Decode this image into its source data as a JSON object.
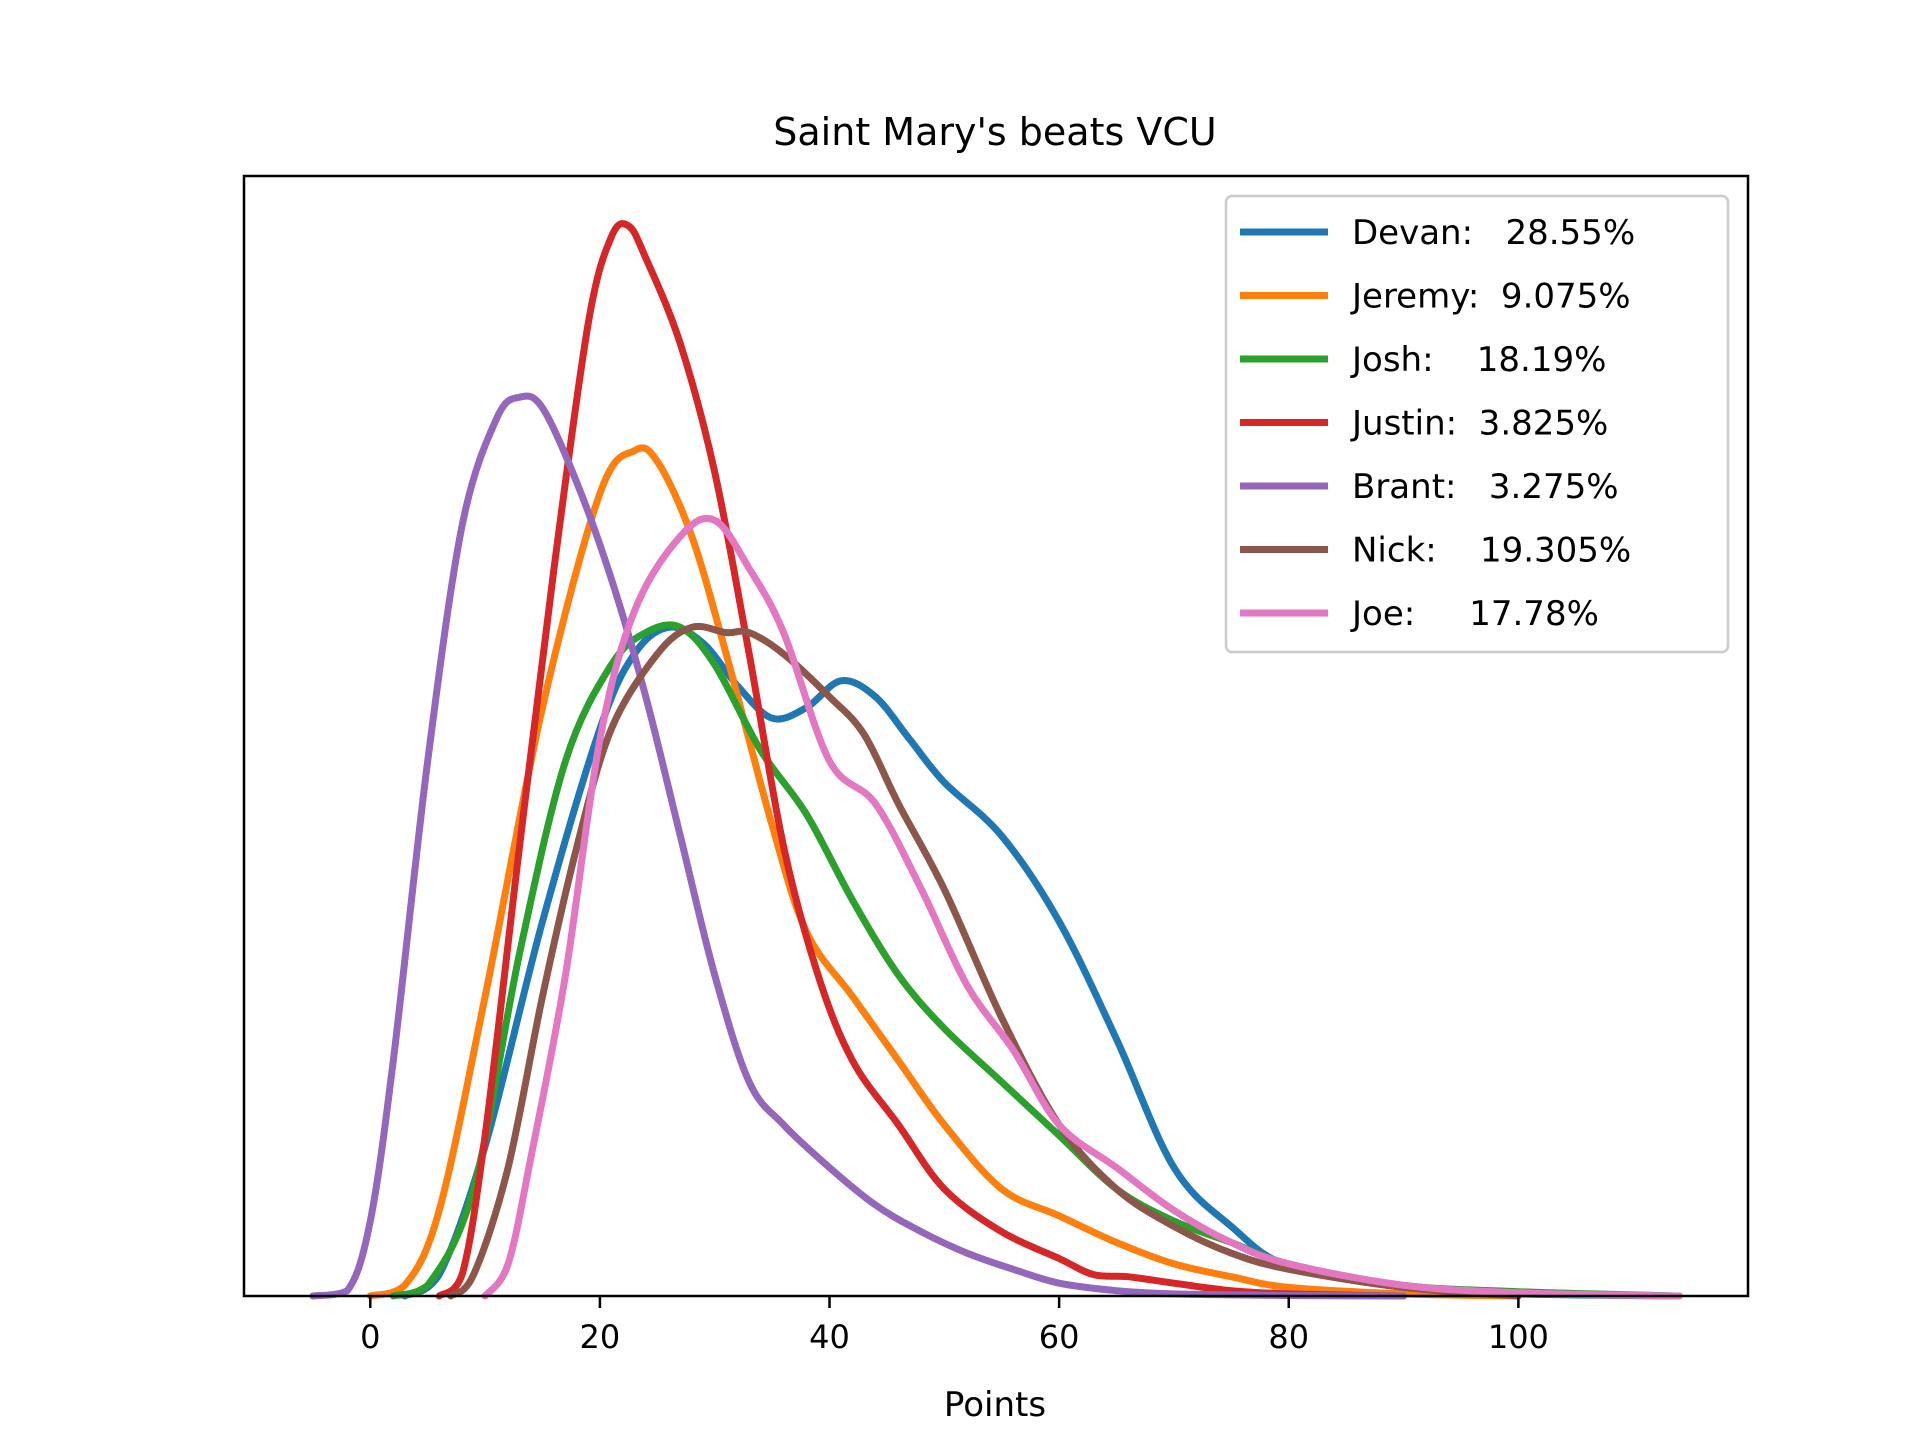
{
  "chart_data": {
    "type": "line",
    "title": "Saint Mary's beats VCU",
    "xlabel": "Points",
    "ylabel": "",
    "xlim": [
      -11,
      120
    ],
    "ylim": [
      0,
      1
    ],
    "xticks": [
      0,
      20,
      40,
      60,
      80,
      100
    ],
    "xtick_labels": [
      "0",
      "20",
      "40",
      "60",
      "80",
      "100"
    ],
    "grid": false,
    "legend_position": "top-right",
    "series": [
      {
        "name": "Devan:   28.55%",
        "color": "#1f77b4",
        "x": [
          3,
          6,
          10,
          15,
          20,
          23,
          26,
          29,
          32,
          35,
          38,
          41,
          44,
          47,
          50,
          55,
          60,
          65,
          70,
          75,
          80,
          90,
          100,
          114
        ],
        "y": [
          0,
          0.02,
          0.14,
          0.35,
          0.53,
          0.6,
          0.625,
          0.61,
          0.57,
          0.54,
          0.55,
          0.575,
          0.56,
          0.52,
          0.48,
          0.43,
          0.35,
          0.24,
          0.12,
          0.065,
          0.028,
          0.008,
          0.002,
          0
        ]
      },
      {
        "name": "Jeremy:  9.075%",
        "color": "#ff7f0e",
        "x": [
          0,
          3,
          6,
          10,
          15,
          20,
          23,
          25,
          28,
          31,
          35,
          38,
          42,
          46,
          50,
          55,
          60,
          65,
          70,
          75,
          80,
          90,
          100
        ],
        "y": [
          0,
          0.01,
          0.08,
          0.28,
          0.55,
          0.75,
          0.79,
          0.78,
          0.71,
          0.6,
          0.44,
          0.34,
          0.28,
          0.22,
          0.16,
          0.1,
          0.075,
          0.05,
          0.03,
          0.018,
          0.008,
          0.002,
          0
        ]
      },
      {
        "name": "Josh:    18.19%",
        "color": "#2ca02c",
        "x": [
          2,
          5,
          9,
          13,
          17,
          21,
          24,
          27,
          30,
          34,
          38,
          42,
          46,
          50,
          55,
          60,
          65,
          70,
          75,
          80,
          90,
          100,
          114
        ],
        "y": [
          0,
          0.01,
          0.1,
          0.32,
          0.5,
          0.59,
          0.62,
          0.625,
          0.59,
          0.51,
          0.45,
          0.37,
          0.3,
          0.25,
          0.2,
          0.15,
          0.1,
          0.07,
          0.05,
          0.03,
          0.01,
          0.004,
          0
        ]
      },
      {
        "name": "Justin:  3.825%",
        "color": "#d62728",
        "x": [
          6,
          8,
          10,
          13,
          16,
          19,
          21,
          22.5,
          24,
          27,
          30,
          33,
          36,
          39,
          42,
          46,
          50,
          55,
          60,
          63,
          66,
          70,
          75,
          80,
          90
        ],
        "y": [
          0,
          0.02,
          0.15,
          0.42,
          0.68,
          0.91,
          0.99,
          1.0,
          0.97,
          0.89,
          0.77,
          0.6,
          0.42,
          0.3,
          0.22,
          0.16,
          0.1,
          0.06,
          0.035,
          0.02,
          0.018,
          0.012,
          0.005,
          0.002,
          0
        ]
      },
      {
        "name": "Brant:   3.275%",
        "color": "#9467bd",
        "x": [
          -5,
          -2,
          0,
          2,
          5,
          8,
          11,
          13,
          15,
          18,
          21,
          24,
          27,
          30,
          33,
          36,
          40,
          44,
          48,
          52,
          56,
          60,
          65,
          70,
          80,
          90
        ],
        "y": [
          0,
          0.005,
          0.07,
          0.22,
          0.5,
          0.72,
          0.82,
          0.84,
          0.83,
          0.76,
          0.67,
          0.56,
          0.43,
          0.3,
          0.2,
          0.16,
          0.12,
          0.085,
          0.06,
          0.04,
          0.025,
          0.012,
          0.005,
          0.002,
          0.0005,
          0
        ]
      },
      {
        "name": "Nick:    19.305%",
        "color": "#8c564b",
        "x": [
          7,
          9,
          12,
          15,
          18,
          21,
          25,
          28,
          31,
          33,
          36,
          40,
          43,
          46,
          50,
          55,
          60,
          65,
          70,
          75,
          80,
          90,
          100
        ],
        "y": [
          0,
          0.02,
          0.12,
          0.28,
          0.42,
          0.53,
          0.6,
          0.625,
          0.62,
          0.62,
          0.6,
          0.56,
          0.525,
          0.46,
          0.38,
          0.26,
          0.16,
          0.1,
          0.065,
          0.04,
          0.025,
          0.008,
          0
        ]
      },
      {
        "name": "Joe:     17.78%",
        "color": "#e377c2",
        "x": [
          10,
          12,
          14,
          17,
          20,
          23,
          27,
          30,
          33,
          36,
          40,
          44,
          48,
          52,
          56,
          60,
          65,
          70,
          75,
          80,
          90,
          100,
          114
        ],
        "y": [
          0,
          0.03,
          0.13,
          0.3,
          0.52,
          0.64,
          0.71,
          0.725,
          0.68,
          0.62,
          0.5,
          0.46,
          0.38,
          0.29,
          0.23,
          0.16,
          0.12,
          0.08,
          0.05,
          0.03,
          0.01,
          0.003,
          0
        ]
      }
    ]
  }
}
